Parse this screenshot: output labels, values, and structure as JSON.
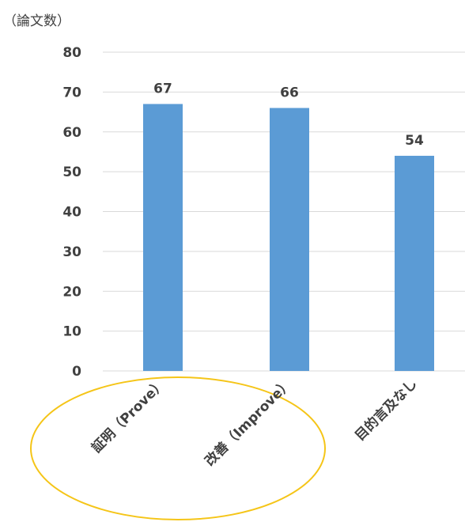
{
  "chart_data": {
    "type": "bar",
    "unit_label": "（論文数）",
    "categories": [
      "証明（Prove）",
      "改善（Improve）",
      "目的言及なし"
    ],
    "values": [
      67,
      66,
      54
    ],
    "ylim": [
      0,
      80
    ],
    "yticks": [
      0,
      10,
      20,
      30,
      40,
      50,
      60,
      70,
      80
    ],
    "grid": true,
    "legend": "none",
    "colors": {
      "bar": "#5b9bd5",
      "grid": "#d9d9d9",
      "highlight_ellipse": "#f5c518",
      "text": "#404040"
    },
    "highlight": {
      "categories": [
        "証明（Prove）",
        "改善（Improve）"
      ],
      "shape": "ellipse"
    }
  }
}
